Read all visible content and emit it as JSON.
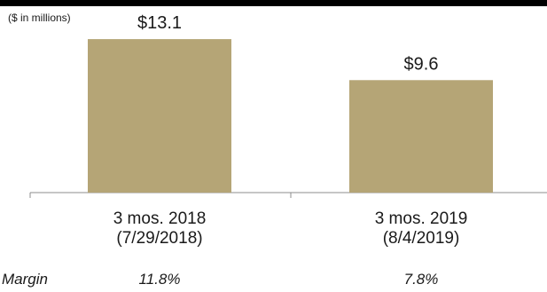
{
  "header": {
    "units_label": "($ in millions)"
  },
  "chart_data": {
    "type": "bar",
    "units_label": "($ in millions)",
    "categories": [
      {
        "line1": "3 mos. 2018",
        "line2": "(7/29/2018)"
      },
      {
        "line1": "3 mos. 2019",
        "line2": "(8/4/2019)"
      }
    ],
    "values": [
      13.1,
      9.6
    ],
    "data_labels": [
      "$13.1",
      "$9.6"
    ],
    "bar_color": "#b5a576",
    "ylim": [
      0,
      15.0
    ],
    "grid": false,
    "legend": "none"
  },
  "margin_row": {
    "label": "Margin",
    "values": [
      "11.8%",
      "7.8%"
    ]
  }
}
